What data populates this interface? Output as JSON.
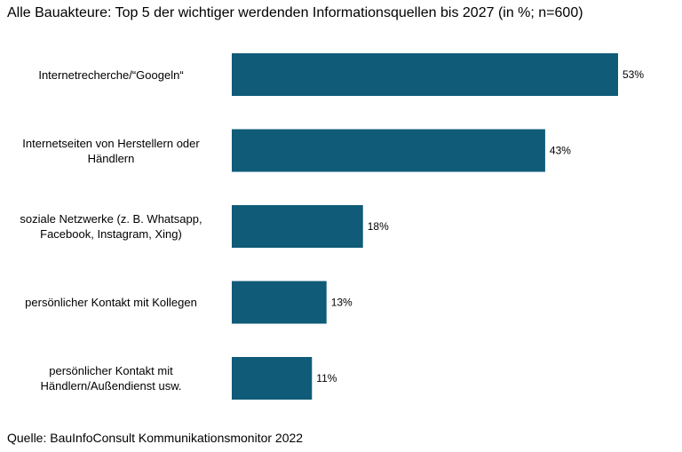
{
  "chart_data": {
    "type": "bar",
    "orientation": "horizontal",
    "title": "Alle Bauakteure: Top 5 der wichtiger werdenden Informationsquellen  bis 2027 (in %; n=600)",
    "categories": [
      "Internetrecherche/“Googeln“",
      "Internetseiten von Herstellern oder Händlern",
      "soziale Netzwerke (z. B. Whatsapp, Facebook, Instagram, Xing)",
      "persönlicher Kontakt mit Kollegen",
      "persönlicher Kontakt mit Händlern/Außendienst usw."
    ],
    "values": [
      53,
      43,
      18,
      13,
      11
    ],
    "value_labels": [
      "53%",
      "43%",
      "18%",
      "13%",
      "11%"
    ],
    "xlabel": "",
    "ylabel": "",
    "xlim": [
      0,
      55
    ],
    "grid": false,
    "bar_color": "#0f5b78",
    "source": "Quelle: BauInfoConsult Kommunikationsmonitor 2022"
  }
}
